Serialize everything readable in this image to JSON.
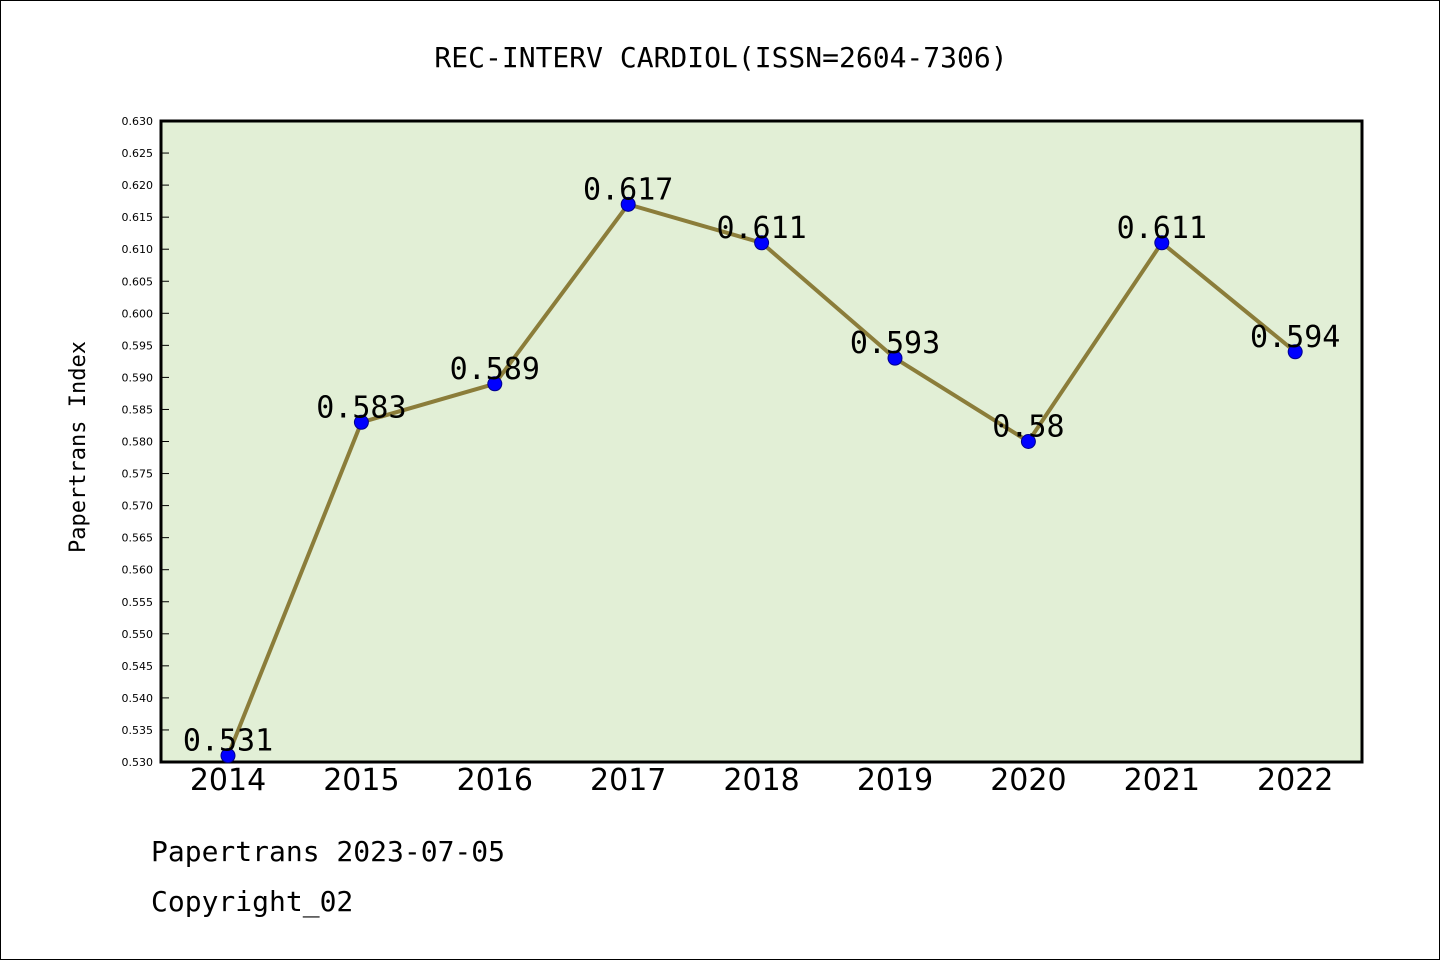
{
  "colors": {
    "plot_background": "#e2efd6",
    "line": "#8b7d3a",
    "marker": "#0000ff",
    "frame": "#000000"
  },
  "footer": {
    "source_date": "Papertrans 2023-07-05",
    "copyright": "Copyright_02"
  },
  "chart_data": {
    "type": "line",
    "title": "REC-INTERV CARDIOL(ISSN=2604-7306)",
    "xlabel": "",
    "ylabel": "Papertrans Index",
    "categories": [
      "2014",
      "2015",
      "2016",
      "2017",
      "2018",
      "2019",
      "2020",
      "2021",
      "2022"
    ],
    "series": [
      {
        "values": [
          0.531,
          0.583,
          0.589,
          0.617,
          0.611,
          0.593,
          0.58,
          0.611,
          0.594
        ],
        "data_labels": [
          "0.531",
          "0.583",
          "0.589",
          "0.617",
          "0.611",
          "0.593",
          "0.58",
          "0.611",
          "0.594"
        ]
      }
    ],
    "ylim": [
      0.53,
      0.63
    ],
    "y_ticks": [
      "0.530",
      "0.535",
      "0.540",
      "0.545",
      "0.550",
      "0.555",
      "0.560",
      "0.565",
      "0.570",
      "0.575",
      "0.580",
      "0.585",
      "0.590",
      "0.595",
      "0.600",
      "0.605",
      "0.610",
      "0.615",
      "0.620",
      "0.625",
      "0.630"
    ],
    "grid": false,
    "legend": "none"
  }
}
